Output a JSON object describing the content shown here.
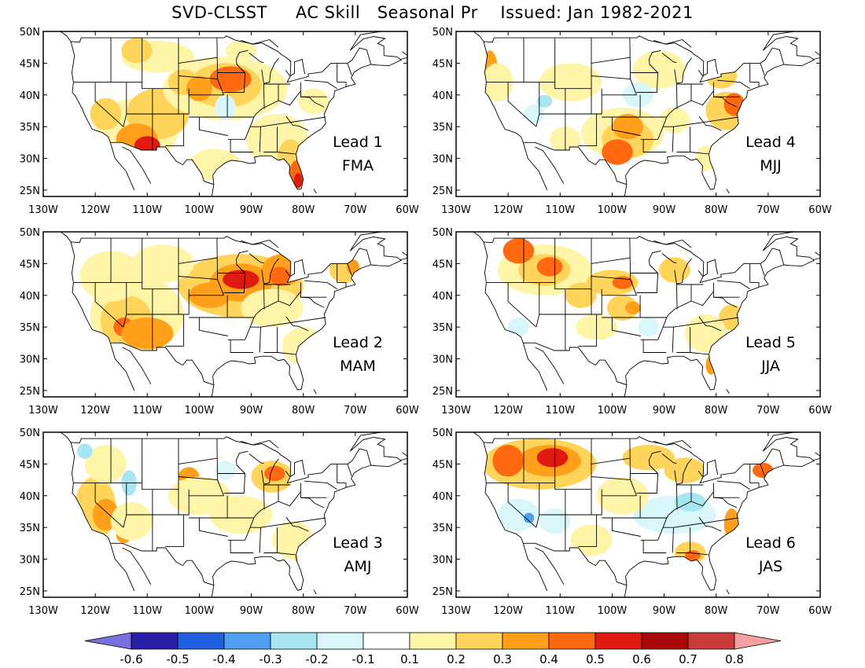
{
  "title": "SVD-CLSST     AC Skill   Seasonal Pr    Issued: Jan 1982-2021",
  "lat_ticks": [
    "50N",
    "45N",
    "40N",
    "35N",
    "30N",
    "25N"
  ],
  "lon_ticks": [
    "130W",
    "120W",
    "110W",
    "100W",
    "90W",
    "80W",
    "70W",
    "60W"
  ],
  "panels": [
    {
      "lead": "Lead 1",
      "season": "FMA"
    },
    {
      "lead": "Lead 4",
      "season": "MJJ"
    },
    {
      "lead": "Lead 2",
      "season": "MAM"
    },
    {
      "lead": "Lead 5",
      "season": "JJA"
    },
    {
      "lead": "Lead 3",
      "season": "AMJ"
    },
    {
      "lead": "Lead 6",
      "season": "JAS"
    }
  ],
  "colorbar": {
    "labels": [
      "-0.6",
      "-0.5",
      "-0.4",
      "-0.3",
      "-0.2",
      "-0.1",
      "0.1",
      "0.2",
      "0.3",
      "0.4",
      "0.5",
      "0.6",
      "0.7",
      "0.8"
    ],
    "low_arrow_color": "#7a6fe0",
    "high_arrow_color": "#f4a0a0",
    "colors": [
      "#2a1fa8",
      "#1f5fe0",
      "#4f9ef0",
      "#a8e6f4",
      "#d9f6fa",
      "#ffffff",
      "#fff5a8",
      "#ffd45a",
      "#ff9f1a",
      "#ff6a10",
      "#e01a10",
      "#a80808",
      "#c83c3c"
    ]
  },
  "skill_colors": {
    "0.2": "#fff5a8",
    "0.3": "#ffd45a",
    "0.4": "#ff9f1a",
    "0.5": "#ff6a10",
    "0.6": "#e01a10",
    "neg0.2": "#d9f6fa",
    "neg0.3": "#a8e6f4",
    "neg0.4": "#4f9ef0"
  }
}
